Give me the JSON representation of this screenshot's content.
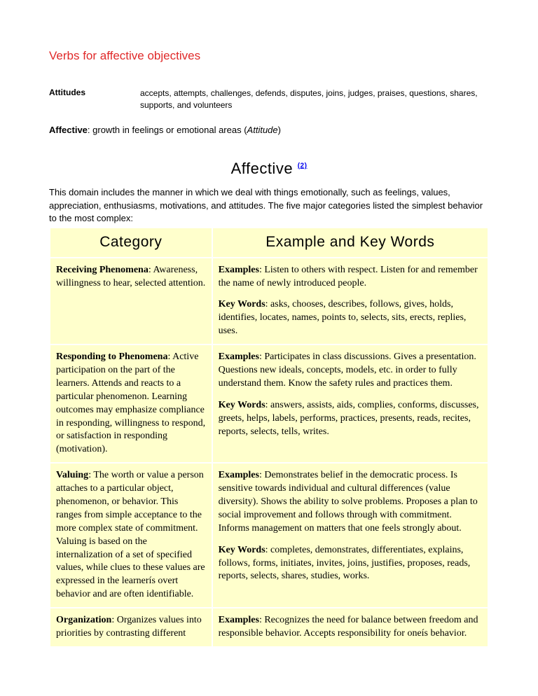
{
  "title": "Verbs for affective objectives",
  "attitudes": {
    "label": "Attitudes",
    "text": "accepts, attempts, challenges, defends, disputes, joins, judges, praises, questions, shares, supports, and volunteers"
  },
  "affective_def_bold": "Affective",
  "affective_def_mid": ": growth in feelings or emotional areas (",
  "affective_def_ital": "Attitude",
  "affective_def_end": ")",
  "section_header": "Affective",
  "section_header_ref": "(2)",
  "intro": "This domain includes the manner in which we deal with things emotionally, such as feelings, values, appreciation, enthusiasms, motivations, and attitudes. The five major categories listed the simplest behavior to the most complex:",
  "table": {
    "headers": [
      "Category",
      "Example and Key Words"
    ],
    "rows": [
      {
        "cat_bold": "Receiving Phenomena",
        "cat_rest": ": Awareness, willingness to hear, selected attention.",
        "ex_bold": "Examples",
        "ex_rest": ": Listen to others with respect. Listen for and remember the name of newly introduced people.",
        "kw_bold": "Key Words",
        "kw_rest": ": asks, chooses, describes, follows, gives, holds, identifies, locates, names, points to, selects, sits, erects, replies, uses."
      },
      {
        "cat_bold": "Responding to Phenomena",
        "cat_rest": ": Active participation on the part of the learners. Attends and reacts to a particular phenomenon.  Learning outcomes may emphasize compliance in responding, willingness to respond, or satisfaction in responding (motivation).",
        "ex_bold": "Examples",
        "ex_rest": ":  Participates in class discussions.  Gives a presentation. Questions new ideals, concepts, models, etc. in order to fully understand them. Know the safety rules and practices them.",
        "kw_bold": "Key Words",
        "kw_rest": ": answers, assists, aids, complies, conforms, discusses, greets, helps, labels, performs, practices, presents, reads, recites, reports, selects, tells, writes."
      },
      {
        "cat_bold": "Valuing",
        "cat_rest": ": The worth or value a person attaches to a particular object, phenomenon, or behavior. This ranges from simple acceptance to the more complex state of commitment. Valuing is based on the internalization of a set of specified values, while clues to these values are expressed in the learnerís overt behavior and are often identifiable.",
        "ex_bold": "Examples",
        "ex_rest": ":  Demonstrates belief in the democratic process. Is sensitive towards individual and cultural differences (value diversity). Shows the ability to solve problems. Proposes a plan to social improvement and follows through with commitment. Informs management on matters that one feels strongly about.",
        "kw_bold": "Key Words",
        "kw_rest": ": completes, demonstrates, differentiates, explains, follows, forms, initiates, invites, joins, justifies, proposes, reads, reports, selects, shares, studies, works."
      },
      {
        "cat_bold": "Organization",
        "cat_rest": ": Organizes values into priorities by contrasting different",
        "ex_bold": "Examples",
        "ex_rest": ":  Recognizes the need for balance between freedom and responsible behavior. Accepts responsibility for oneís behavior.",
        "kw_bold": "",
        "kw_rest": ""
      }
    ]
  }
}
